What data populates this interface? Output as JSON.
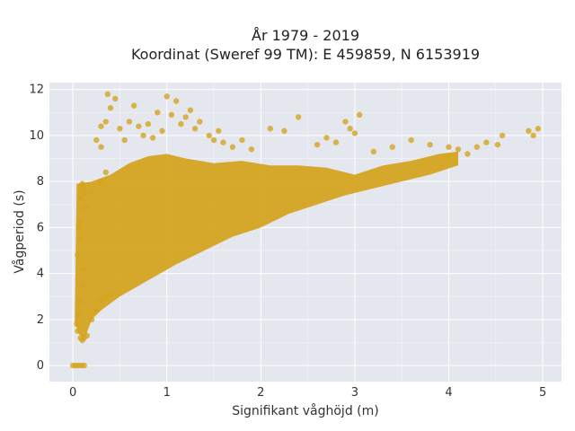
{
  "chart_data": {
    "type": "scatter",
    "title": "År 1979 - 2019",
    "subtitle": "Koordinat (Sweref 99 TM): E 459859, N 6153919",
    "xlabel": "Signifikant våghöjd (m)",
    "ylabel": "Vågperiod (s)",
    "xlim": [
      -0.25,
      5.2
    ],
    "ylim": [
      -0.7,
      12.3
    ],
    "xticks": [
      0,
      1,
      2,
      3,
      4,
      5
    ],
    "yticks": [
      0,
      2,
      4,
      6,
      8,
      10,
      12
    ],
    "grid": true,
    "marker_color": "#D4A420",
    "plot_background": "#E5E7EF",
    "points": [
      [
        0.0,
        0.0
      ],
      [
        0.03,
        0.0
      ],
      [
        0.06,
        0.0
      ],
      [
        0.09,
        0.0
      ],
      [
        0.12,
        0.0
      ],
      [
        0.05,
        1.5
      ],
      [
        0.08,
        1.2
      ],
      [
        0.1,
        1.1
      ],
      [
        0.12,
        1.2
      ],
      [
        0.15,
        1.3
      ],
      [
        0.04,
        1.8
      ],
      [
        0.06,
        2.2
      ],
      [
        0.08,
        2.8
      ],
      [
        0.1,
        3.5
      ],
      [
        0.12,
        4.2
      ],
      [
        0.05,
        4.8
      ],
      [
        0.07,
        5.5
      ],
      [
        0.06,
        6.0
      ],
      [
        0.08,
        6.3
      ],
      [
        0.1,
        6.8
      ],
      [
        0.09,
        7.3
      ],
      [
        0.11,
        7.8
      ],
      [
        0.1,
        7.9
      ],
      [
        0.13,
        7.5
      ],
      [
        0.15,
        6.9
      ],
      [
        0.2,
        2.0
      ],
      [
        0.25,
        2.4
      ],
      [
        0.3,
        2.8
      ],
      [
        0.35,
        3.0
      ],
      [
        0.4,
        3.1
      ],
      [
        0.2,
        7.6
      ],
      [
        0.3,
        8.0
      ],
      [
        0.35,
        8.4
      ],
      [
        0.3,
        9.5
      ],
      [
        0.25,
        9.8
      ],
      [
        0.3,
        10.4
      ],
      [
        0.35,
        10.6
      ],
      [
        0.4,
        11.2
      ],
      [
        0.37,
        11.8
      ],
      [
        0.45,
        11.6
      ],
      [
        0.5,
        10.3
      ],
      [
        0.55,
        9.8
      ],
      [
        0.6,
        10.6
      ],
      [
        0.65,
        11.3
      ],
      [
        0.7,
        10.4
      ],
      [
        0.75,
        10.0
      ],
      [
        0.8,
        10.5
      ],
      [
        0.85,
        9.9
      ],
      [
        0.9,
        11.0
      ],
      [
        0.95,
        10.2
      ],
      [
        1.0,
        11.7
      ],
      [
        1.05,
        10.9
      ],
      [
        1.1,
        11.5
      ],
      [
        1.15,
        10.5
      ],
      [
        1.2,
        10.8
      ],
      [
        1.25,
        11.1
      ],
      [
        1.3,
        10.3
      ],
      [
        1.35,
        10.6
      ],
      [
        1.45,
        10.0
      ],
      [
        1.5,
        9.8
      ],
      [
        1.55,
        10.2
      ],
      [
        1.6,
        9.7
      ],
      [
        1.7,
        9.5
      ],
      [
        1.8,
        9.8
      ],
      [
        1.9,
        9.4
      ],
      [
        2.1,
        10.3
      ],
      [
        2.25,
        10.2
      ],
      [
        2.4,
        10.8
      ],
      [
        2.6,
        9.6
      ],
      [
        2.7,
        9.9
      ],
      [
        2.8,
        9.7
      ],
      [
        3.0,
        10.1
      ],
      [
        2.95,
        10.3
      ],
      [
        3.05,
        10.9
      ],
      [
        2.9,
        10.6
      ],
      [
        3.2,
        9.3
      ],
      [
        3.4,
        9.5
      ],
      [
        3.6,
        9.8
      ],
      [
        3.8,
        9.6
      ],
      [
        4.0,
        9.5
      ],
      [
        4.1,
        9.4
      ],
      [
        4.2,
        9.2
      ],
      [
        4.3,
        9.5
      ],
      [
        4.4,
        9.7
      ],
      [
        4.52,
        9.6
      ],
      [
        4.57,
        10.0
      ],
      [
        4.85,
        10.2
      ],
      [
        4.9,
        10.0
      ],
      [
        4.95,
        10.3
      ],
      [
        4.0,
        9.1
      ]
    ]
  }
}
